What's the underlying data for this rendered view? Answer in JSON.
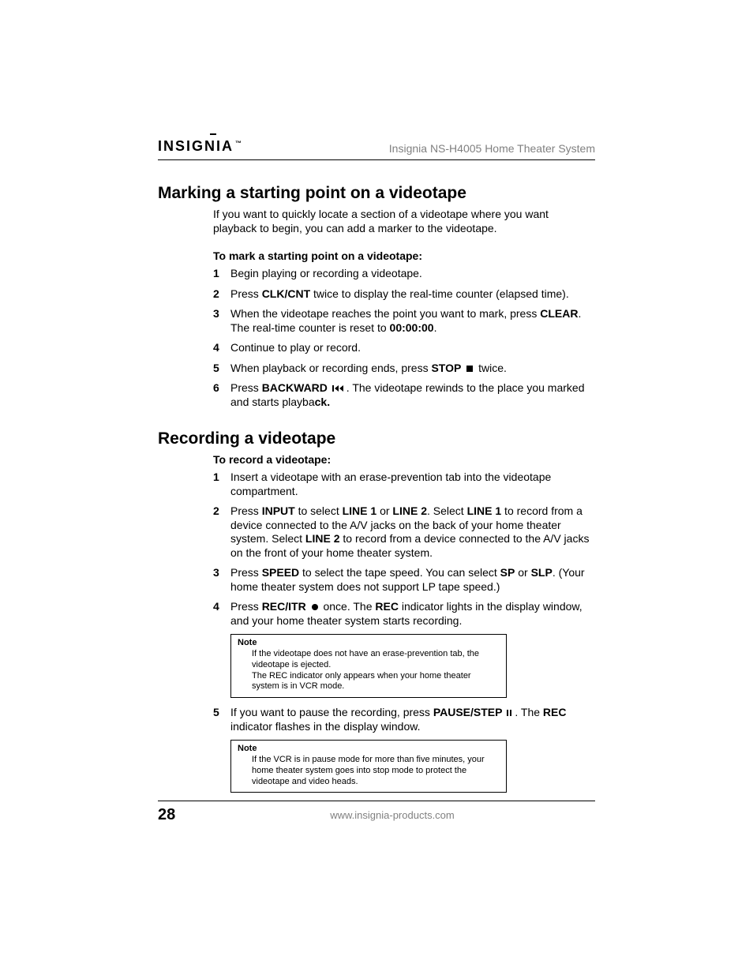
{
  "header": {
    "logo_text": "INSIGNIA",
    "logo_tm": "™",
    "product_title": "Insignia NS-H4005 Home Theater System"
  },
  "section1": {
    "heading": "Marking a starting point on a videotape",
    "intro": "If you want to quickly locate a section of a videotape where you want playback to begin, you can add a marker to the videotape.",
    "subhead": "To mark a starting point on a videotape:",
    "steps": [
      {
        "n": "1",
        "html": "Begin playing or recording a videotape."
      },
      {
        "n": "2",
        "html": "Press <span class='b'>CLK/CNT</span> twice to display the real-time counter (elapsed time)."
      },
      {
        "n": "3",
        "html": "When the videotape reaches the point you want to mark, press <span class='b'>CLEAR</span>. The real-time counter is reset to <span class='b'>00:00:00</span>."
      },
      {
        "n": "4",
        "html": "Continue to play or record."
      },
      {
        "n": "5",
        "html": "When playback or recording ends, press <span class='b'>STOP</span> <svg class='icon' width='10' height='10'><rect x='1' y='1' width='8' height='8' fill='#000'/></svg> twice."
      },
      {
        "n": "6",
        "html": "Press <span class='b'>BACKWARD</span> <svg class='icon' width='16' height='10'><rect x='0' y='1' width='2' height='8' fill='#000'/><polygon points='8,1 8,9 3,5' fill='#000'/><polygon points='14,1 14,9 9,5' fill='#000'/></svg>. The videotape rewinds to the place you marked and starts playba<span class='b'>ck.</span>"
      }
    ]
  },
  "section2": {
    "heading": "Recording a videotape",
    "subhead": "To record a videotape:",
    "steps": [
      {
        "n": "1",
        "html": "Insert a videotape with an erase-prevention tab into the videotape compartment."
      },
      {
        "n": "2",
        "html": "Press <span class='b'>INPUT</span> to select <span class='b'>LINE 1</span> or <span class='b'>LINE 2</span>. Select <span class='b'>LINE 1</span> to record from a device connected to the A/V jacks on the back of your home theater system. Select <span class='b'>LINE 2</span> to record from a device connected to the A/V jacks on the front of your home theater system."
      },
      {
        "n": "3",
        "html": "Press <span class='b'>SPEED</span> to select the tape speed. You can select <span class='b'>SP</span> or <span class='b'>SLP</span>. (Your home theater system does not support LP tape speed.)"
      },
      {
        "n": "4",
        "html": "Press <span class='b'>REC/ITR</span> <svg class='icon' width='10' height='10'><circle cx='5' cy='5' r='4' fill='#000'/></svg> once. The <span class='b'>REC</span> indicator lights in the display window, and your home theater system starts recording."
      }
    ],
    "note1": {
      "label": "Note",
      "lines": [
        "If the videotape does not have an erase-prevention tab, the videotape is ejected.",
        "The REC indicator only appears when your home theater system is in VCR mode."
      ]
    },
    "step5": {
      "n": "5",
      "html": "If you want to pause the recording, press <span class='b'>PAUSE/STEP</span> <svg class='icon' width='8' height='10'><rect x='0' y='1' width='2' height='8' fill='#000'/><rect x='4' y='1' width='2' height='8' fill='#000'/></svg>. The <span class='b'>REC</span> indicator flashes in the display window."
    },
    "note2": {
      "label": "Note",
      "lines": [
        "If the VCR is in pause mode for more than five minutes, your home theater system goes into stop mode to protect the videotape and video heads."
      ]
    }
  },
  "footer": {
    "page_number": "28",
    "url": "www.insignia-products.com"
  }
}
